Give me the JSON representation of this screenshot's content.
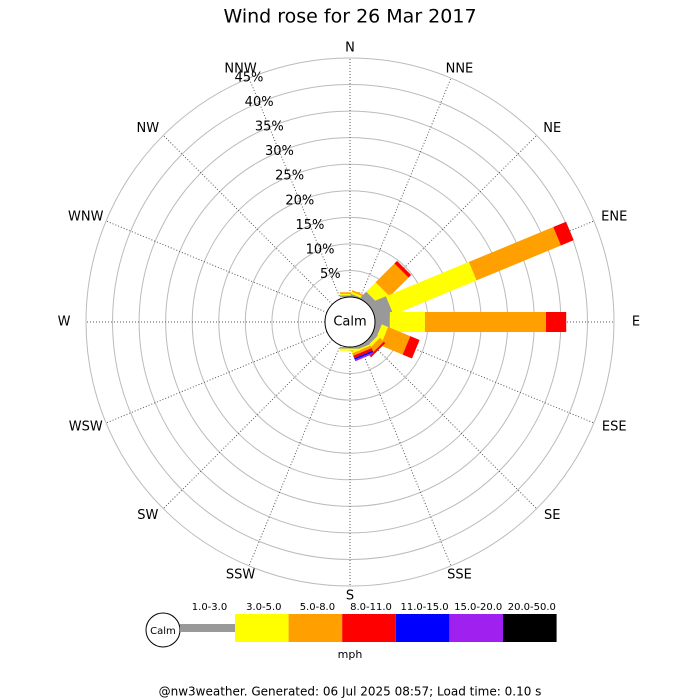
{
  "chart_data": {
    "type": "windrose",
    "title": "Wind rose for 26 Mar 2017",
    "categories": [
      "N",
      "NNE",
      "NE",
      "ENE",
      "E",
      "ESE",
      "SE",
      "SSE",
      "S",
      "SSW",
      "SW",
      "WSW",
      "W",
      "WNW",
      "NW",
      "NNW"
    ],
    "calm_label": "Calm",
    "ylim": [
      0,
      45
    ],
    "yticks": [
      {
        "value": 5,
        "label": "5%"
      },
      {
        "value": 10,
        "label": "10%"
      },
      {
        "value": 15,
        "label": "15%"
      },
      {
        "value": 20,
        "label": "20%"
      },
      {
        "value": 25,
        "label": "25%"
      },
      {
        "value": 30,
        "label": "30%"
      },
      {
        "value": 35,
        "label": "35%"
      },
      {
        "value": 40,
        "label": "40%"
      },
      {
        "value": 45,
        "label": "45%"
      }
    ],
    "series": [
      {
        "name": "1.0-3.0",
        "color": "#999999",
        "values": [
          0.3,
          0.3,
          1.5,
          3.4,
          2.8,
          1.0,
          0.8,
          0.6,
          0.3,
          0,
          0,
          0,
          0,
          0,
          0,
          0
        ]
      },
      {
        "name": "3.0-5.0",
        "color": "#ffff00",
        "values": [
          0.3,
          0.4,
          2.5,
          16.9,
          6.6,
          1.3,
          0.6,
          0.3,
          0.4,
          0,
          0,
          0,
          0,
          0,
          0,
          0
        ]
      },
      {
        "name": "5.0-8.0",
        "color": "#ffa000",
        "values": [
          0.3,
          0.3,
          5.0,
          17.2,
          22.8,
          4.5,
          1.0,
          0.5,
          0,
          0,
          0,
          0,
          0,
          0,
          0,
          0
        ]
      },
      {
        "name": "8.0-11.0",
        "color": "#ff0000",
        "values": [
          0,
          0,
          0.7,
          2.6,
          3.8,
          1.9,
          0.4,
          0.5,
          0,
          0,
          0,
          0,
          0,
          0,
          0,
          0
        ]
      },
      {
        "name": "11.0-15.0",
        "color": "#0000ff",
        "values": [
          0,
          0,
          0,
          0,
          0,
          0,
          0,
          0.3,
          0,
          0,
          0,
          0,
          0,
          0,
          0,
          0
        ]
      },
      {
        "name": "15.0-20.0",
        "color": "#a020f0",
        "values": [
          0,
          0,
          0,
          0,
          0,
          0,
          0,
          0.3,
          0,
          0,
          0,
          0,
          0,
          0,
          0,
          0
        ]
      },
      {
        "name": "20.0-50.0",
        "color": "#000000",
        "values": [
          0,
          0,
          0,
          0,
          0,
          0,
          0,
          0,
          0,
          0,
          0,
          0,
          0,
          0,
          0,
          0
        ]
      }
    ],
    "legend_unit": "mph",
    "footer": "@nw3weather. Generated: 06 Jul 2025 08:57; Load time: 0.10 s"
  }
}
